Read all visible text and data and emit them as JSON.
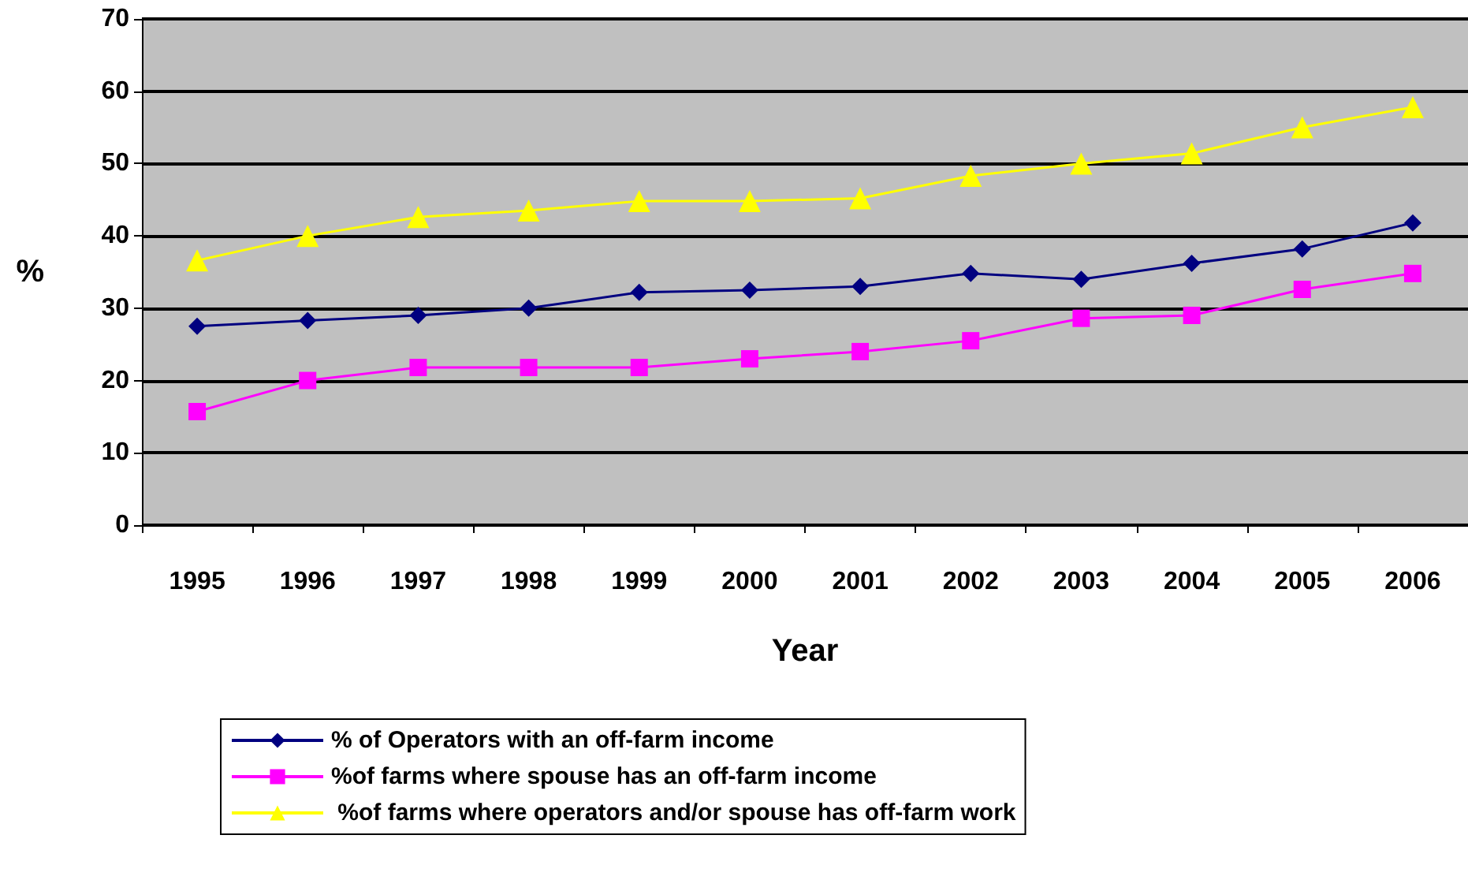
{
  "chart_data": {
    "type": "line",
    "xlabel": "Year",
    "ylabel": "%",
    "categories": [
      "1995",
      "1996",
      "1997",
      "1998",
      "1999",
      "2000",
      "2001",
      "2002",
      "2003",
      "2004",
      "2005",
      "2006"
    ],
    "series": [
      {
        "name": "% of Operators with an off-farm income",
        "color": "#000080",
        "marker": "diamond",
        "values": [
          27.5,
          28.3,
          29,
          30,
          32.2,
          32.5,
          33,
          34.8,
          34,
          36.2,
          38.2,
          41.8
        ]
      },
      {
        "name": "%of farms where spouse has an off-farm income",
        "color": "#ff00ff",
        "marker": "square",
        "values": [
          15.7,
          20,
          21.8,
          21.8,
          21.8,
          23,
          24,
          25.5,
          28.6,
          29,
          32.6,
          34.8
        ]
      },
      {
        "name": " %of farms where operators and/or spouse has off-farm work",
        "color": "#ffff00",
        "marker": "triangle",
        "values": [
          36.6,
          40,
          42.6,
          43.5,
          44.8,
          44.8,
          45.2,
          48.3,
          50,
          51.4,
          55,
          57.8
        ]
      }
    ],
    "ylim": [
      0,
      70
    ],
    "yticks": [
      0,
      10,
      20,
      30,
      40,
      50,
      60,
      70
    ],
    "grid": "y",
    "legend": "bottom",
    "line_style": "solid"
  }
}
